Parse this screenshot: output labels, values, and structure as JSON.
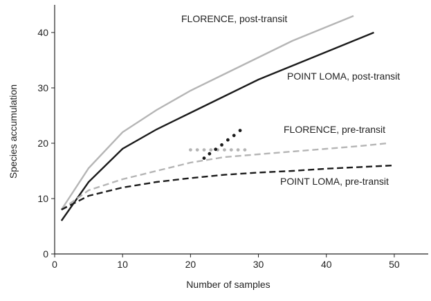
{
  "chart_data": {
    "type": "line",
    "xlabel": "Number of samples",
    "ylabel": "Species accumulation",
    "xlim": [
      0,
      55
    ],
    "ylim": [
      0,
      45
    ],
    "xticks": [
      0,
      10,
      20,
      30,
      40,
      50
    ],
    "yticks": [
      0,
      10,
      20,
      30,
      40
    ],
    "series": [
      {
        "name": "FLORENCE, post-transit",
        "color": "#b5b5b5",
        "style": "solid",
        "x": [
          1,
          5,
          10,
          15,
          20,
          25,
          30,
          35,
          40,
          44
        ],
        "values": [
          8,
          15.5,
          22,
          26,
          29.5,
          32.5,
          35.5,
          38.5,
          41,
          43
        ]
      },
      {
        "name": "POINT LOMA, post-transit",
        "color": "#1a1a1a",
        "style": "solid",
        "x": [
          1,
          5,
          10,
          15,
          20,
          25,
          30,
          35,
          40,
          45,
          47
        ],
        "values": [
          6,
          13,
          19,
          22.5,
          25.5,
          28.5,
          31.5,
          34,
          36.5,
          39,
          40
        ]
      },
      {
        "name": "FLORENCE, pre-transit",
        "color": "#b5b5b5",
        "style": "dashed",
        "x": [
          1,
          5,
          10,
          15,
          20,
          25,
          30,
          35,
          40,
          45,
          49
        ],
        "values": [
          8,
          11.5,
          13.5,
          15,
          16.5,
          17.5,
          18,
          18.5,
          19,
          19.5,
          20
        ]
      },
      {
        "name": "POINT LOMA, pre-transit",
        "color": "#1a1a1a",
        "style": "dashed",
        "x": [
          1,
          5,
          10,
          15,
          20,
          25,
          30,
          35,
          40,
          45,
          50
        ],
        "values": [
          8,
          10.5,
          12,
          13,
          13.7,
          14.3,
          14.7,
          15,
          15.4,
          15.7,
          16
        ]
      },
      {
        "color": "#b5b5b5",
        "style": "dots",
        "x": [
          20,
          21,
          22,
          23,
          24,
          25,
          26,
          27,
          28
        ],
        "values": [
          18.8,
          18.8,
          18.8,
          18.8,
          18.8,
          18.8,
          18.8,
          18.8,
          18.8
        ]
      },
      {
        "color": "#1a1a1a",
        "style": "dots",
        "x": [
          22,
          22.8,
          23.7,
          24.6,
          25.5,
          26.4,
          27.3
        ],
        "values": [
          17.3,
          18.1,
          18.9,
          19.7,
          20.6,
          21.4,
          22.3
        ]
      }
    ]
  }
}
